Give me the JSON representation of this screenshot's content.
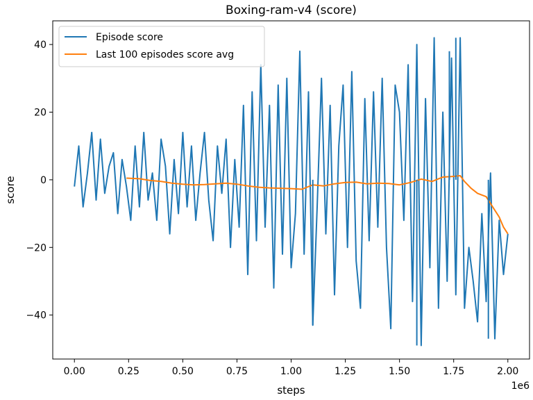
{
  "chart_data": {
    "type": "line",
    "title": "Boxing-ram-v4 (score)",
    "xlabel": "steps",
    "ylabel": "score",
    "x_offset_label": "1e6",
    "xlim": [
      -0.1,
      2.1
    ],
    "ylim": [
      -53,
      47
    ],
    "x_ticks": [
      0.0,
      0.25,
      0.5,
      0.75,
      1.0,
      1.25,
      1.5,
      1.75,
      2.0
    ],
    "x_tick_labels": [
      "0.00",
      "0.25",
      "0.50",
      "0.75",
      "1.00",
      "1.25",
      "1.50",
      "1.75",
      "2.00"
    ],
    "y_ticks": [
      -40,
      -20,
      0,
      20,
      40
    ],
    "y_tick_labels": [
      "−40",
      "−20",
      "0",
      "20",
      "40"
    ],
    "grid": false,
    "legend": "top-left",
    "series": [
      {
        "name": "Episode score",
        "color": "#1f77b4",
        "x": [
          0.0,
          0.02,
          0.04,
          0.06,
          0.08,
          0.1,
          0.12,
          0.14,
          0.16,
          0.18,
          0.2,
          0.22,
          0.24,
          0.26,
          0.28,
          0.3,
          0.32,
          0.34,
          0.36,
          0.38,
          0.4,
          0.42,
          0.44,
          0.46,
          0.48,
          0.5,
          0.52,
          0.54,
          0.56,
          0.58,
          0.6,
          0.62,
          0.64,
          0.66,
          0.68,
          0.7,
          0.72,
          0.74,
          0.76,
          0.78,
          0.8,
          0.82,
          0.84,
          0.86,
          0.88,
          0.9,
          0.92,
          0.94,
          0.96,
          0.98,
          1.0,
          1.02,
          1.04,
          1.06,
          1.08,
          1.1,
          1.12,
          1.14,
          1.16,
          1.18,
          1.2,
          1.22,
          1.24,
          1.26,
          1.28,
          1.3,
          1.32,
          1.34,
          1.36,
          1.38,
          1.4,
          1.42,
          1.44,
          1.46,
          1.48,
          1.5,
          1.52,
          1.54,
          1.56,
          1.58,
          1.6,
          1.62,
          1.64,
          1.66,
          1.68,
          1.7,
          1.72,
          1.74,
          1.76,
          1.78,
          1.8,
          1.82,
          1.84,
          1.86,
          1.88,
          1.9,
          1.92,
          1.94,
          1.96,
          1.98,
          2.0
        ],
        "y": [
          -2,
          10,
          -8,
          2,
          14,
          -6,
          12,
          -4,
          4,
          8,
          -10,
          6,
          -2,
          -12,
          10,
          -8,
          14,
          -6,
          2,
          -12,
          12,
          4,
          -16,
          6,
          -10,
          14,
          -8,
          10,
          -12,
          2,
          14,
          -6,
          -18,
          10,
          -4,
          12,
          -20,
          6,
          -14,
          22,
          -28,
          26,
          -18,
          34,
          -14,
          22,
          -32,
          28,
          -22,
          30,
          -26,
          -10,
          38,
          -22,
          26,
          -43,
          -8,
          30,
          -16,
          22,
          -34,
          10,
          28,
          -20,
          32,
          -24,
          -38,
          24,
          -18,
          26,
          -14,
          30,
          -20,
          -44,
          28,
          20,
          -12,
          34,
          -36,
          40,
          -49,
          24,
          -26,
          42,
          -38,
          20,
          -30,
          36,
          -34,
          42,
          -38,
          -20,
          -30,
          -42,
          -10,
          -36,
          2,
          -47,
          -12,
          -28,
          -16
        ],
        "highlights": [
          [
            1.1,
            -43
          ],
          [
            1.58,
            -49
          ],
          [
            1.73,
            38
          ],
          [
            1.76,
            42
          ],
          [
            1.91,
            -47
          ]
        ]
      },
      {
        "name": "Last 100 episodes score avg",
        "color": "#ff7f0e",
        "x": [
          0.24,
          0.3,
          0.35,
          0.4,
          0.45,
          0.5,
          0.55,
          0.6,
          0.65,
          0.7,
          0.75,
          0.8,
          0.85,
          0.9,
          0.95,
          1.0,
          1.05,
          1.1,
          1.15,
          1.2,
          1.25,
          1.3,
          1.35,
          1.4,
          1.45,
          1.5,
          1.55,
          1.6,
          1.65,
          1.7,
          1.75,
          1.78,
          1.8,
          1.83,
          1.86,
          1.9,
          1.93,
          1.96,
          1.98,
          2.0
        ],
        "y": [
          0.5,
          0.3,
          -0.2,
          -0.5,
          -1.0,
          -1.3,
          -1.5,
          -1.4,
          -1.2,
          -1.0,
          -1.3,
          -1.8,
          -2.2,
          -2.4,
          -2.5,
          -2.6,
          -2.8,
          -1.5,
          -1.8,
          -1.2,
          -0.8,
          -0.7,
          -1.2,
          -1.0,
          -1.1,
          -1.5,
          -0.8,
          0.2,
          -0.5,
          0.8,
          1.0,
          1.2,
          -0.5,
          -2.5,
          -4.0,
          -5.0,
          -8.0,
          -11.0,
          -14.0,
          -16.0
        ]
      }
    ]
  }
}
